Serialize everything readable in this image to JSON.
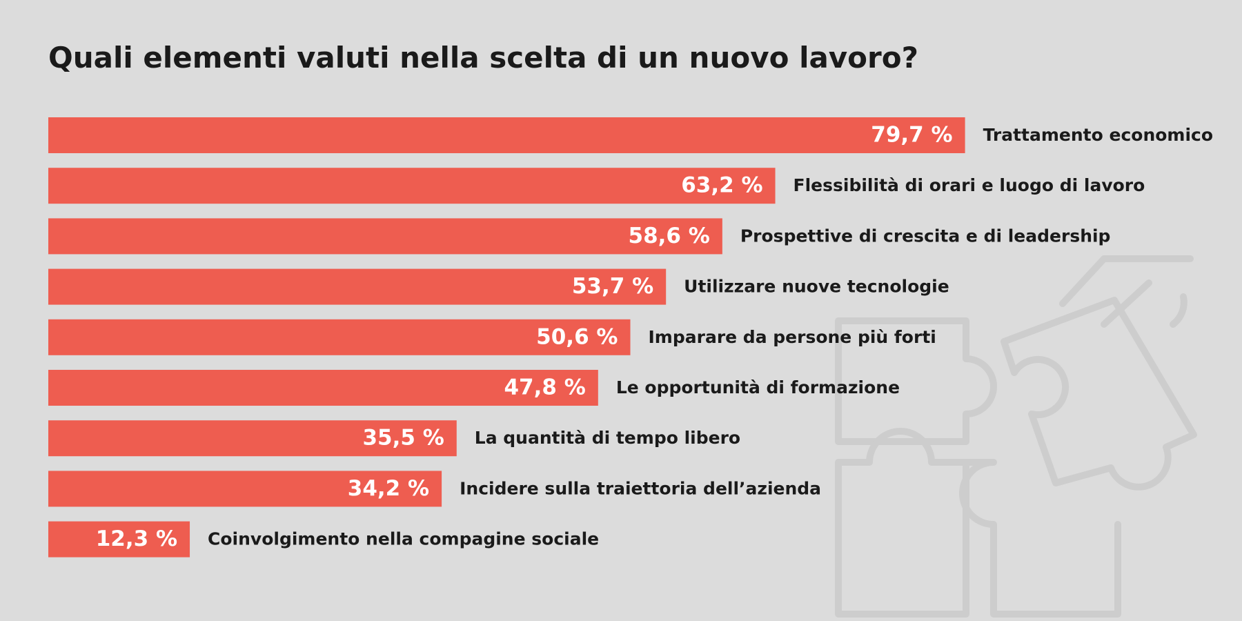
{
  "chart_data": {
    "type": "bar",
    "orientation": "horizontal",
    "title": "Quali elementi valuti nella scelta di un nuovo lavoro?",
    "categories": [
      "Trattamento economico",
      "Flessibilità di orari e luogo di lavoro",
      "Prospettive di crescita e di leadership",
      "Utilizzare nuove tecnologie",
      "Imparare da persone più forti",
      "Le opportunità di formazione",
      "La quantità di tempo libero",
      "Incidere sulla traiettoria dell’azienda",
      "Coinvolgimento nella compagine sociale"
    ],
    "values": [
      79.7,
      63.2,
      58.6,
      53.7,
      50.6,
      47.8,
      35.5,
      34.2,
      12.3
    ],
    "value_labels": [
      "79,7 %",
      "63,2 %",
      "58,6 %",
      "53,7 %",
      "50,6 %",
      "47,8 %",
      "35,5 %",
      "34,2 %",
      "12,3 %"
    ],
    "color": "#ee5d50"
  }
}
